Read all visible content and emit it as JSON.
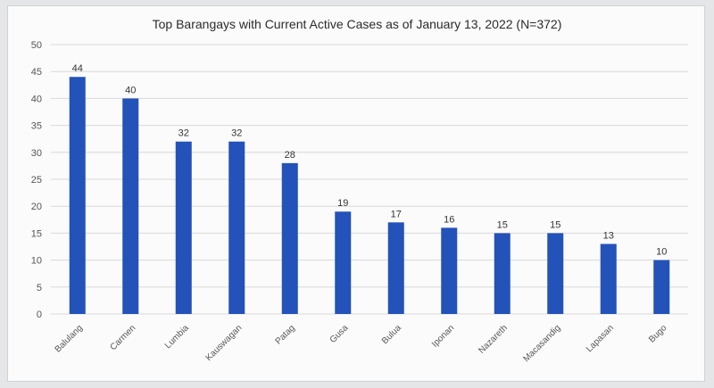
{
  "chart_data": {
    "type": "bar",
    "title": "Top Barangays with Current Active Cases as of January 13, 2022 (N=372)",
    "categories": [
      "Balulang",
      "Carmen",
      "Lumbia",
      "Kauswagan",
      "Patag",
      "Gusa",
      "Bulua",
      "Iponan",
      "Nazareth",
      "Macasandig",
      "Lapasan",
      "Bugo"
    ],
    "values": [
      44,
      40,
      32,
      32,
      28,
      19,
      17,
      16,
      15,
      15,
      13,
      10
    ],
    "ylim": [
      0,
      50
    ],
    "yticks": [
      0,
      5,
      10,
      15,
      20,
      25,
      30,
      35,
      40,
      45,
      50
    ],
    "grid": true,
    "legend": "none",
    "bar_color": "#2352b8",
    "grid_color": "#d9d9d9"
  }
}
